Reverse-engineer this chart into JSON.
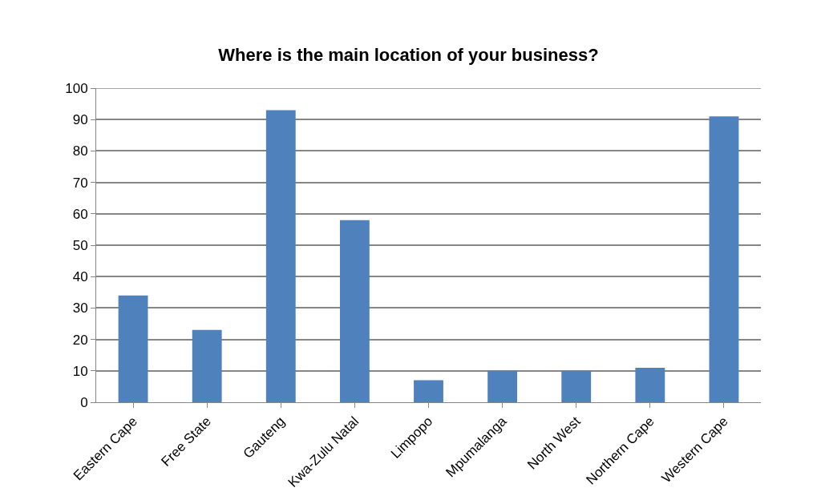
{
  "chart_data": {
    "type": "bar",
    "title": "Where is the main location of your business?",
    "categories": [
      "Eastern Cape",
      "Free State",
      "Gauteng",
      "Kwa-Zulu Natal",
      "Limpopo",
      "Mpumalanga",
      "North West",
      "Northern Cape",
      "Western Cape"
    ],
    "values": [
      34,
      23,
      93,
      58,
      7,
      10,
      10,
      11,
      91
    ],
    "color": "#4f81bd",
    "ylim": [
      0,
      100
    ],
    "yticks": [
      0,
      10,
      20,
      30,
      40,
      50,
      60,
      70,
      80,
      90,
      100
    ],
    "grid": "y"
  }
}
